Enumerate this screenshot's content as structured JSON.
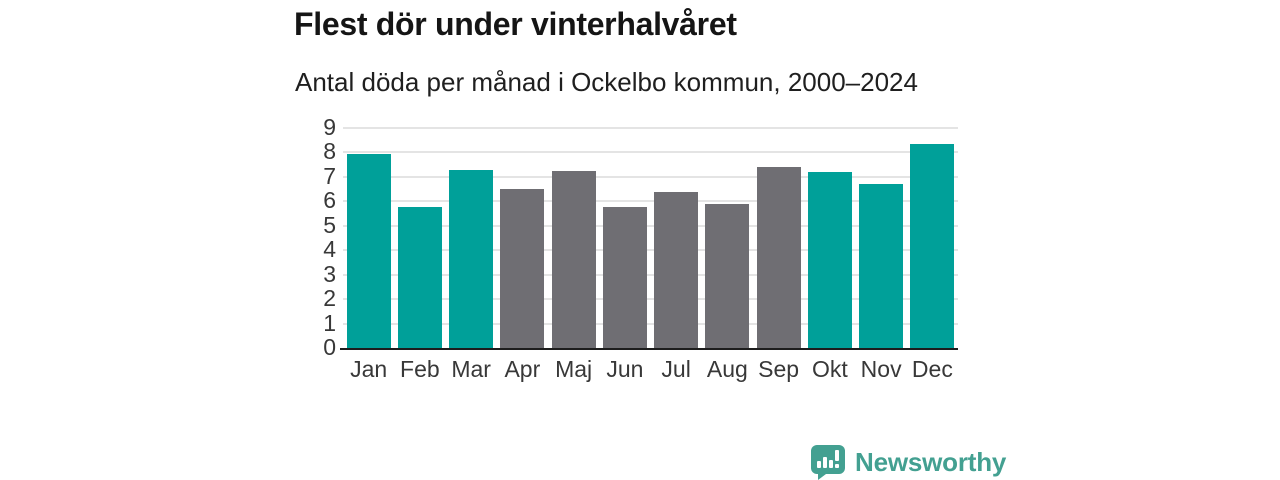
{
  "header": {
    "title": "Flest dör under vinterhalvåret",
    "subtitle": "Antal döda per månad i Ockelbo kommun, 2000–2024"
  },
  "chart_data": {
    "type": "bar",
    "title": "Flest dör under vinterhalvåret",
    "subtitle": "Antal döda per månad i Ockelbo kommun, 2000–2024",
    "categories": [
      "Jan",
      "Feb",
      "Mar",
      "Apr",
      "Maj",
      "Jun",
      "Jul",
      "Aug",
      "Sep",
      "Okt",
      "Nov",
      "Dec"
    ],
    "values": [
      7.95,
      5.75,
      7.3,
      6.5,
      7.25,
      5.75,
      6.4,
      5.9,
      7.4,
      7.2,
      6.7,
      8.35
    ],
    "groups": [
      "winter",
      "winter",
      "winter",
      "summer",
      "summer",
      "summer",
      "summer",
      "summer",
      "summer",
      "winter",
      "winter",
      "winter"
    ],
    "bar_colors_by_group": {
      "winter": "#00A099",
      "summer": "#6F6E73"
    },
    "xlabel": "",
    "ylabel": "",
    "ylim": [
      0,
      9
    ],
    "ytick_step": 1,
    "yticks": [
      0,
      1,
      2,
      3,
      4,
      5,
      6,
      7,
      8,
      9
    ],
    "grid": true,
    "legend": "none"
  },
  "footer": {
    "brand": "Newsworthy",
    "logo_icon": "speech-bubble-bar-chart-exclamation-icon"
  },
  "colors": {
    "winter_bar": "#00A099",
    "summer_bar": "#6F6E73",
    "brand_teal": "#43A091",
    "gridline": "#e4e4e4",
    "axis_line": "#1d1d1d",
    "title_text": "#151515",
    "subtitle_text": "#1f1f1f",
    "tick_text": "#383838"
  }
}
